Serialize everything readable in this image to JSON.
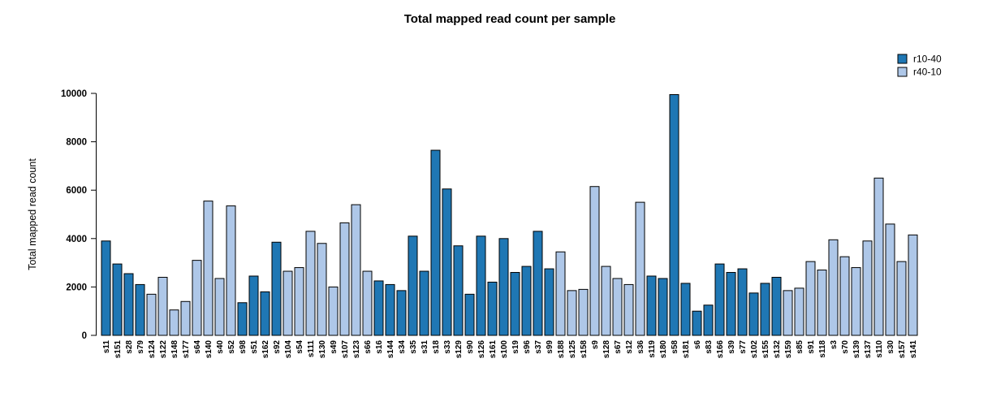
{
  "title": "Total mapped read count per sample",
  "legend": {
    "position": "top-right",
    "items": [
      {
        "label": "r10-40",
        "color": "#1f77b4"
      },
      {
        "label": "r40-10",
        "color": "#aec7e8"
      }
    ]
  },
  "chart_data": {
    "type": "bar",
    "title": "Total mapped read count per sample",
    "xlabel": "",
    "ylabel": "Total mapped read count",
    "ylim": [
      0,
      10000
    ],
    "yticks": [
      0,
      2000,
      4000,
      6000,
      8000,
      10000
    ],
    "grid": false,
    "bar_border_color": "#000000",
    "legend_position": "top-right",
    "series_colors": {
      "r10-40": "#1f77b4",
      "r40-10": "#aec7e8"
    },
    "samples": [
      {
        "name": "s11",
        "value": 3900,
        "group": "r10-40"
      },
      {
        "name": "s151",
        "value": 2950,
        "group": "r10-40"
      },
      {
        "name": "s28",
        "value": 2550,
        "group": "r10-40"
      },
      {
        "name": "s79",
        "value": 2100,
        "group": "r10-40"
      },
      {
        "name": "s124",
        "value": 1700,
        "group": "r40-10"
      },
      {
        "name": "s122",
        "value": 2400,
        "group": "r40-10"
      },
      {
        "name": "s148",
        "value": 1050,
        "group": "r40-10"
      },
      {
        "name": "s177",
        "value": 1400,
        "group": "r40-10"
      },
      {
        "name": "s64",
        "value": 3100,
        "group": "r40-10"
      },
      {
        "name": "s140",
        "value": 5550,
        "group": "r40-10"
      },
      {
        "name": "s40",
        "value": 2350,
        "group": "r40-10"
      },
      {
        "name": "s52",
        "value": 5350,
        "group": "r40-10"
      },
      {
        "name": "s98",
        "value": 1350,
        "group": "r10-40"
      },
      {
        "name": "s51",
        "value": 2450,
        "group": "r10-40"
      },
      {
        "name": "s162",
        "value": 1800,
        "group": "r10-40"
      },
      {
        "name": "s92",
        "value": 3850,
        "group": "r10-40"
      },
      {
        "name": "s104",
        "value": 2650,
        "group": "r40-10"
      },
      {
        "name": "s54",
        "value": 2800,
        "group": "r40-10"
      },
      {
        "name": "s111",
        "value": 4300,
        "group": "r40-10"
      },
      {
        "name": "s130",
        "value": 3800,
        "group": "r40-10"
      },
      {
        "name": "s49",
        "value": 2000,
        "group": "r40-10"
      },
      {
        "name": "s107",
        "value": 4650,
        "group": "r40-10"
      },
      {
        "name": "s123",
        "value": 5400,
        "group": "r40-10"
      },
      {
        "name": "s66",
        "value": 2650,
        "group": "r40-10"
      },
      {
        "name": "s16",
        "value": 2250,
        "group": "r10-40"
      },
      {
        "name": "s144",
        "value": 2100,
        "group": "r10-40"
      },
      {
        "name": "s34",
        "value": 1850,
        "group": "r10-40"
      },
      {
        "name": "s35",
        "value": 4100,
        "group": "r10-40"
      },
      {
        "name": "s31",
        "value": 2650,
        "group": "r10-40"
      },
      {
        "name": "s18",
        "value": 7650,
        "group": "r10-40"
      },
      {
        "name": "s33",
        "value": 6050,
        "group": "r10-40"
      },
      {
        "name": "s129",
        "value": 3700,
        "group": "r10-40"
      },
      {
        "name": "s90",
        "value": 1700,
        "group": "r10-40"
      },
      {
        "name": "s126",
        "value": 4100,
        "group": "r10-40"
      },
      {
        "name": "s161",
        "value": 2200,
        "group": "r10-40"
      },
      {
        "name": "s100",
        "value": 4000,
        "group": "r10-40"
      },
      {
        "name": "s19",
        "value": 2600,
        "group": "r10-40"
      },
      {
        "name": "s96",
        "value": 2850,
        "group": "r10-40"
      },
      {
        "name": "s37",
        "value": 4300,
        "group": "r10-40"
      },
      {
        "name": "s99",
        "value": 2750,
        "group": "r10-40"
      },
      {
        "name": "s188",
        "value": 3450,
        "group": "r40-10"
      },
      {
        "name": "s125",
        "value": 1850,
        "group": "r40-10"
      },
      {
        "name": "s158",
        "value": 1900,
        "group": "r40-10"
      },
      {
        "name": "s9",
        "value": 6150,
        "group": "r40-10"
      },
      {
        "name": "s128",
        "value": 2850,
        "group": "r40-10"
      },
      {
        "name": "s67",
        "value": 2350,
        "group": "r40-10"
      },
      {
        "name": "s12",
        "value": 2100,
        "group": "r40-10"
      },
      {
        "name": "s36",
        "value": 5500,
        "group": "r40-10"
      },
      {
        "name": "s119",
        "value": 2450,
        "group": "r10-40"
      },
      {
        "name": "s180",
        "value": 2350,
        "group": "r10-40"
      },
      {
        "name": "s58",
        "value": 9950,
        "group": "r10-40"
      },
      {
        "name": "s181",
        "value": 2150,
        "group": "r10-40"
      },
      {
        "name": "s6",
        "value": 1000,
        "group": "r10-40"
      },
      {
        "name": "s83",
        "value": 1250,
        "group": "r10-40"
      },
      {
        "name": "s166",
        "value": 2950,
        "group": "r10-40"
      },
      {
        "name": "s39",
        "value": 2600,
        "group": "r10-40"
      },
      {
        "name": "s77",
        "value": 2750,
        "group": "r10-40"
      },
      {
        "name": "s102",
        "value": 1750,
        "group": "r10-40"
      },
      {
        "name": "s155",
        "value": 2150,
        "group": "r10-40"
      },
      {
        "name": "s132",
        "value": 2400,
        "group": "r10-40"
      },
      {
        "name": "s159",
        "value": 1850,
        "group": "r40-10"
      },
      {
        "name": "s85",
        "value": 1950,
        "group": "r40-10"
      },
      {
        "name": "s91",
        "value": 3050,
        "group": "r40-10"
      },
      {
        "name": "s118",
        "value": 2700,
        "group": "r40-10"
      },
      {
        "name": "s3",
        "value": 3950,
        "group": "r40-10"
      },
      {
        "name": "s70",
        "value": 3250,
        "group": "r40-10"
      },
      {
        "name": "s139",
        "value": 2800,
        "group": "r40-10"
      },
      {
        "name": "s137",
        "value": 3900,
        "group": "r40-10"
      },
      {
        "name": "s110",
        "value": 6500,
        "group": "r40-10"
      },
      {
        "name": "s30",
        "value": 4600,
        "group": "r40-10"
      },
      {
        "name": "s157",
        "value": 3050,
        "group": "r40-10"
      },
      {
        "name": "s141",
        "value": 4150,
        "group": "r40-10"
      }
    ]
  }
}
